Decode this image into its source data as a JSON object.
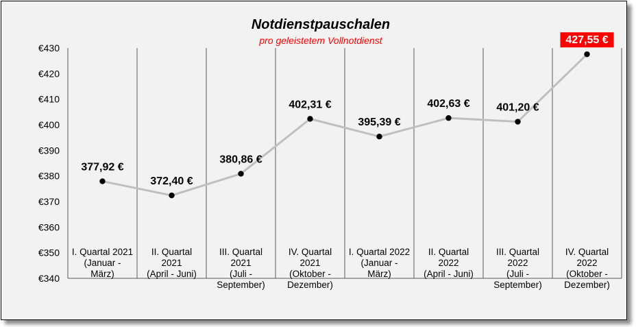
{
  "chart_data": {
    "type": "line",
    "title": "Notdienstpauschalen",
    "subtitle": "pro geleistetem Vollnotdienst",
    "categories": [
      [
        "I. Quartal 2021",
        "(Januar -",
        "März)"
      ],
      [
        "II. Quartal",
        "2021",
        "(April - Juni)"
      ],
      [
        "III. Quartal",
        "2021",
        "(Juli -",
        "September)"
      ],
      [
        "IV. Quartal",
        "2021",
        "(Oktober -",
        "Dezember)"
      ],
      [
        "I. Quartal 2022",
        "(Januar -",
        "März)"
      ],
      [
        "II. Quartal",
        "2022",
        "(April - Juni)"
      ],
      [
        "III. Quartal",
        "2022",
        "(Juli -",
        "September)"
      ],
      [
        "IV. Quartal",
        "2022",
        "(Oktober -",
        "Dezember)"
      ]
    ],
    "values": [
      377.92,
      372.4,
      380.86,
      402.31,
      395.39,
      402.63,
      401.2,
      427.55
    ],
    "data_labels": [
      "377,92 €",
      "372,40 €",
      "380,86 €",
      "402,31 €",
      "395,39 €",
      "402,63 €",
      "401,20 €",
      "427,55 €"
    ],
    "highlight_index": 7,
    "ylim": [
      340,
      430
    ],
    "yticks": [
      340,
      350,
      360,
      370,
      380,
      390,
      400,
      410,
      420,
      430
    ],
    "ytick_labels": [
      "€340",
      "€350",
      "€360",
      "€370",
      "€380",
      "€390",
      "€400",
      "€410",
      "€420",
      "€430"
    ],
    "grid": "vertical category separators",
    "colors": {
      "line": "#bfbfbf",
      "marker": "#000000",
      "highlight_bg": "#ff0000",
      "highlight_text": "#ffffff",
      "subtitle": "#ff0000"
    }
  }
}
